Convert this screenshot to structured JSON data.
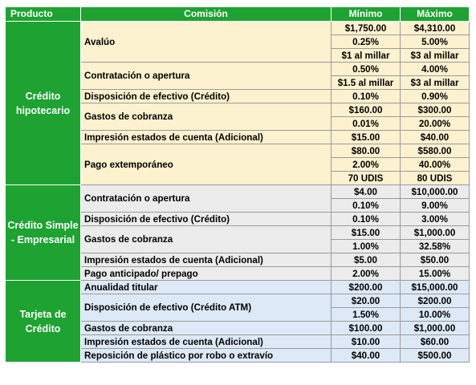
{
  "headers": {
    "producto": "Producto",
    "comision": "Comisión",
    "minimo": "Mínimo",
    "maximo": "Máximo"
  },
  "groups": [
    {
      "product": "Crédito hipotecario",
      "commissions": [
        {
          "name": "Avalúo",
          "rows": [
            [
              "$1,750.00",
              "$4,310.00"
            ],
            [
              "0.25%",
              "5.00%"
            ],
            [
              "$1 al millar",
              "$3 al millar"
            ]
          ]
        },
        {
          "name": "Contratación o apertura",
          "rows": [
            [
              "0.50%",
              "4.00%"
            ],
            [
              "$1.5 al millar",
              "$3 al millar"
            ]
          ]
        },
        {
          "name": "Disposición de efectivo (Crédito)",
          "rows": [
            [
              "0.10%",
              "0.90%"
            ]
          ]
        },
        {
          "name": "Gastos de cobranza",
          "rows": [
            [
              "$160.00",
              "$300.00"
            ],
            [
              "0.01%",
              "20.00%"
            ]
          ]
        },
        {
          "name": "Impresión estados de cuenta (Adicional)",
          "rows": [
            [
              "$15.00",
              "$40.00"
            ]
          ]
        },
        {
          "name": "Pago extemporáneo",
          "rows": [
            [
              "$80.00",
              "$580.00"
            ],
            [
              "2.00%",
              "40.00%"
            ],
            [
              "70 UDIS",
              "80 UDIS"
            ]
          ]
        }
      ]
    },
    {
      "product": "Crédito Simple - Empresarial",
      "commissions": [
        {
          "name": "Contratación o apertura",
          "rows": [
            [
              "$4.00",
              "$10,000.00"
            ],
            [
              "0.10%",
              "9.00%"
            ]
          ]
        },
        {
          "name": "Disposición de efectivo (Crédito)",
          "rows": [
            [
              "0.10%",
              "3.00%"
            ]
          ]
        },
        {
          "name": "Gastos de cobranza",
          "rows": [
            [
              "$15.00",
              "$1,000.00"
            ],
            [
              "1.00%",
              "32.58%"
            ]
          ]
        },
        {
          "name": "Impresión estados de cuenta (Adicional)",
          "rows": [
            [
              "$5.00",
              "$50.00"
            ]
          ]
        },
        {
          "name": "Pago anticipado/ prepago",
          "rows": [
            [
              "2.00%",
              "15.00%"
            ]
          ]
        }
      ]
    },
    {
      "product": "Tarjeta de Crédito",
      "commissions": [
        {
          "name": "Anualidad  titular",
          "rows": [
            [
              "$200.00",
              "$15,000.00"
            ]
          ]
        },
        {
          "name": "Disposición de efectivo  (Crédito ATM)",
          "rows": [
            [
              "$20.00",
              "$200.00"
            ],
            [
              "1.50%",
              "10.00%"
            ]
          ]
        },
        {
          "name": "Gastos de cobranza",
          "rows": [
            [
              "$100.00",
              "$1,000.00"
            ]
          ]
        },
        {
          "name": "Impresión estados de cuenta (Adicional)",
          "rows": [
            [
              "$10.00",
              "$60.00"
            ]
          ]
        },
        {
          "name": "Reposición de plástico por robo o extravío",
          "rows": [
            [
              "$40.00",
              "$500.00"
            ]
          ]
        }
      ]
    }
  ]
}
